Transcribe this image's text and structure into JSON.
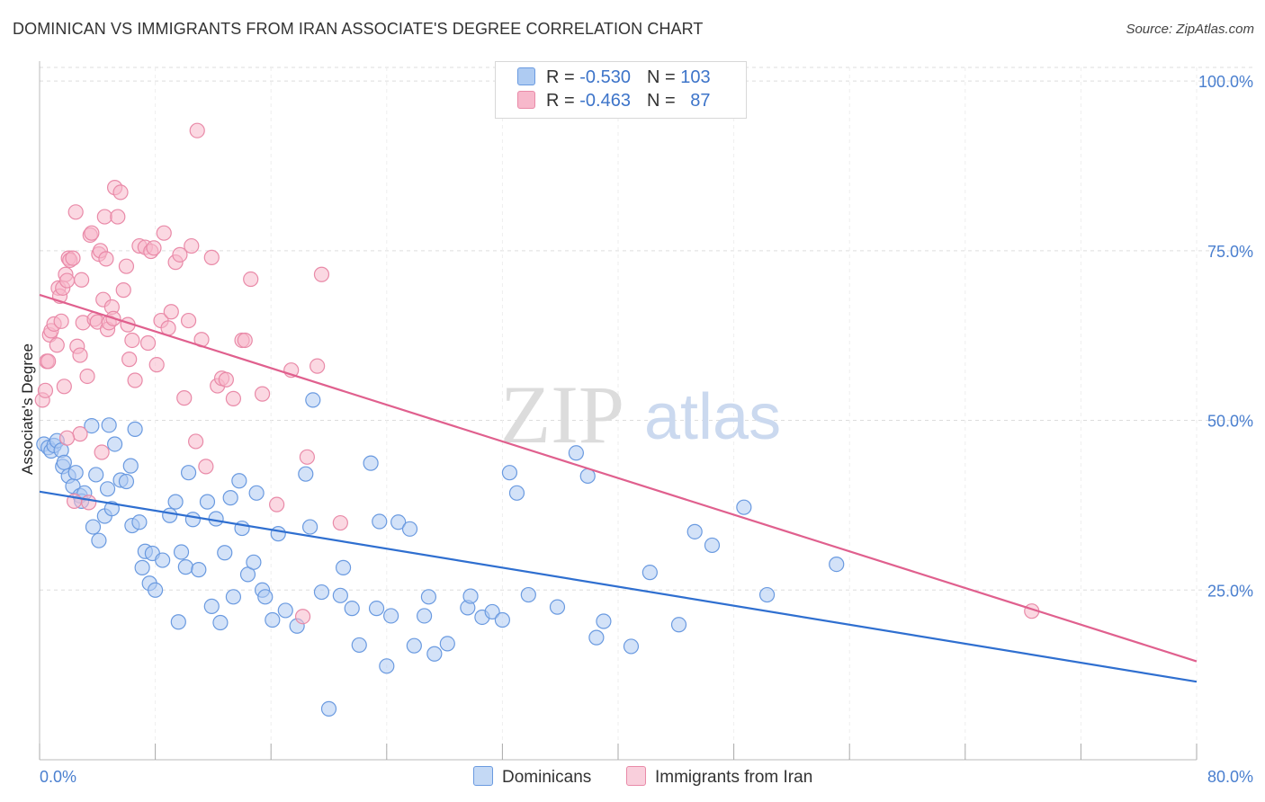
{
  "header": {
    "title": "DOMINICAN VS IMMIGRANTS FROM IRAN ASSOCIATE'S DEGREE CORRELATION CHART",
    "source": "Source: ZipAtlas.com"
  },
  "watermark": {
    "zip": "ZIP",
    "atlas": "atlas"
  },
  "legend": {
    "rows": [
      {
        "r_label": "R = ",
        "r_value": "-0.530",
        "n_label": "N = ",
        "n_value": "103"
      },
      {
        "r_label": "R = ",
        "r_value": "-0.463",
        "n_label": "N = ",
        "n_value": "87"
      }
    ]
  },
  "bottom_legend": {
    "series1": "Dominicans",
    "series2": "Immigrants from Iran"
  },
  "colors": {
    "blue_fill": "#aecbf2",
    "blue_stroke": "#6a9ae0",
    "blue_line": "#2f6fd0",
    "pink_fill": "#f7b8cb",
    "pink_stroke": "#e98aa8",
    "pink_line": "#e0608e",
    "grid": "#dddddd",
    "tick_label": "#4a7fcf"
  },
  "chart_data": {
    "type": "scatter",
    "title": "DOMINICAN VS IMMIGRANTS FROM IRAN ASSOCIATE'S DEGREE CORRELATION CHART",
    "xlabel": "",
    "ylabel": "Associate's Degree",
    "xlim": [
      0,
      80
    ],
    "ylim": [
      0,
      102
    ],
    "x_tick_labels": [
      "0.0%",
      "80.0%"
    ],
    "y_ticks": [
      25,
      50,
      75,
      100
    ],
    "y_tick_labels": [
      "25.0%",
      "50.0%",
      "75.0%",
      "100.0%"
    ],
    "grid": true,
    "legend_position": "top-center",
    "series": [
      {
        "name": "Dominicans",
        "color": "#aecbf2",
        "stats": {
          "R": -0.53,
          "N": 103
        },
        "trend": {
          "x": [
            0,
            80
          ],
          "y": [
            39.5,
            11.5
          ]
        },
        "points": [
          [
            0.3,
            46.5
          ],
          [
            0.6,
            46
          ],
          [
            0.8,
            45.5
          ],
          [
            1.0,
            46.3
          ],
          [
            1.2,
            47
          ],
          [
            1.5,
            45.6
          ],
          [
            1.6,
            43.2
          ],
          [
            1.7,
            43.8
          ],
          [
            2.0,
            41.8
          ],
          [
            2.3,
            40.3
          ],
          [
            2.5,
            42.3
          ],
          [
            2.8,
            38.9
          ],
          [
            2.9,
            38.1
          ],
          [
            3.1,
            39.3
          ],
          [
            3.6,
            49.2
          ],
          [
            3.7,
            34.3
          ],
          [
            3.9,
            42.0
          ],
          [
            4.1,
            32.3
          ],
          [
            4.5,
            35.9
          ],
          [
            4.7,
            39.9
          ],
          [
            4.8,
            49.3
          ],
          [
            5.0,
            37.0
          ],
          [
            5.2,
            46.5
          ],
          [
            5.6,
            41.2
          ],
          [
            6.0,
            41.0
          ],
          [
            6.3,
            43.3
          ],
          [
            6.6,
            48.7
          ],
          [
            6.4,
            34.5
          ],
          [
            6.9,
            35.0
          ],
          [
            7.1,
            28.3
          ],
          [
            7.3,
            30.7
          ],
          [
            7.6,
            26.0
          ],
          [
            8.0,
            25.0
          ],
          [
            7.8,
            30.4
          ],
          [
            8.5,
            29.4
          ],
          [
            9.0,
            36.0
          ],
          [
            9.4,
            38.0
          ],
          [
            9.6,
            20.3
          ],
          [
            9.8,
            30.6
          ],
          [
            10.1,
            28.4
          ],
          [
            10.3,
            42.3
          ],
          [
            10.6,
            35.4
          ],
          [
            11.0,
            28.0
          ],
          [
            11.6,
            38.0
          ],
          [
            11.9,
            22.6
          ],
          [
            12.2,
            35.5
          ],
          [
            12.5,
            20.2
          ],
          [
            12.8,
            30.5
          ],
          [
            13.2,
            38.6
          ],
          [
            13.4,
            24.0
          ],
          [
            13.8,
            41.1
          ],
          [
            14.0,
            34.1
          ],
          [
            14.4,
            27.3
          ],
          [
            14.8,
            29.1
          ],
          [
            15.0,
            39.3
          ],
          [
            15.4,
            25.0
          ],
          [
            15.6,
            24.0
          ],
          [
            16.1,
            20.6
          ],
          [
            16.5,
            33.3
          ],
          [
            17.0,
            22.0
          ],
          [
            17.8,
            19.7
          ],
          [
            18.7,
            34.3
          ],
          [
            18.9,
            53.0
          ],
          [
            18.4,
            42.1
          ],
          [
            19.5,
            24.7
          ],
          [
            20.0,
            7.5
          ],
          [
            20.8,
            24.2
          ],
          [
            21.0,
            28.3
          ],
          [
            21.6,
            22.3
          ],
          [
            22.1,
            16.9
          ],
          [
            22.9,
            43.7
          ],
          [
            23.3,
            22.3
          ],
          [
            23.5,
            35.1
          ],
          [
            24.3,
            21.2
          ],
          [
            24.8,
            35.0
          ],
          [
            25.6,
            34.0
          ],
          [
            25.9,
            16.8
          ],
          [
            26.6,
            21.2
          ],
          [
            26.9,
            24.0
          ],
          [
            27.3,
            15.6
          ],
          [
            28.2,
            17.1
          ],
          [
            29.6,
            22.4
          ],
          [
            29.8,
            24.1
          ],
          [
            30.6,
            21.0
          ],
          [
            31.3,
            21.8
          ],
          [
            32.0,
            20.6
          ],
          [
            32.5,
            42.3
          ],
          [
            33.0,
            39.3
          ],
          [
            33.8,
            24.3
          ],
          [
            35.8,
            22.5
          ],
          [
            37.1,
            45.2
          ],
          [
            37.9,
            41.8
          ],
          [
            38.5,
            18.0
          ],
          [
            39.0,
            20.4
          ],
          [
            40.9,
            16.7
          ],
          [
            45.3,
            33.6
          ],
          [
            42.2,
            27.6
          ],
          [
            44.2,
            19.9
          ],
          [
            46.5,
            31.6
          ],
          [
            48.7,
            37.2
          ],
          [
            50.3,
            24.3
          ],
          [
            55.1,
            28.8
          ],
          [
            24.0,
            13.8
          ]
        ]
      },
      {
        "name": "Immigrants from Iran",
        "color": "#f7b8cb",
        "stats": {
          "R": -0.463,
          "N": 87
        },
        "trend": {
          "x": [
            0,
            80
          ],
          "y": [
            68.5,
            14.5
          ]
        },
        "points": [
          [
            0.2,
            53.0
          ],
          [
            0.4,
            54.4
          ],
          [
            0.5,
            58.7
          ],
          [
            0.6,
            58.7
          ],
          [
            0.7,
            62.6
          ],
          [
            0.8,
            63.2
          ],
          [
            1.0,
            64.2
          ],
          [
            1.2,
            61.1
          ],
          [
            1.3,
            69.5
          ],
          [
            1.4,
            68.3
          ],
          [
            1.5,
            64.6
          ],
          [
            1.6,
            69.5
          ],
          [
            1.7,
            55.0
          ],
          [
            1.8,
            71.5
          ],
          [
            1.9,
            70.6
          ],
          [
            2.0,
            73.9
          ],
          [
            2.1,
            73.6
          ],
          [
            2.3,
            73.9
          ],
          [
            2.5,
            80.7
          ],
          [
            2.6,
            60.9
          ],
          [
            2.8,
            59.6
          ],
          [
            2.9,
            70.7
          ],
          [
            3.0,
            64.4
          ],
          [
            3.3,
            56.5
          ],
          [
            3.5,
            77.3
          ],
          [
            3.6,
            77.6
          ],
          [
            3.8,
            64.9
          ],
          [
            4.0,
            64.5
          ],
          [
            4.1,
            74.5
          ],
          [
            4.2,
            75.0
          ],
          [
            4.4,
            67.8
          ],
          [
            4.5,
            80.0
          ],
          [
            4.6,
            73.8
          ],
          [
            4.7,
            63.4
          ],
          [
            4.8,
            64.4
          ],
          [
            5.0,
            66.7
          ],
          [
            5.1,
            65.0
          ],
          [
            5.2,
            84.3
          ],
          [
            5.4,
            80.0
          ],
          [
            5.6,
            83.6
          ],
          [
            5.8,
            69.2
          ],
          [
            6.0,
            72.7
          ],
          [
            6.1,
            64.1
          ],
          [
            6.2,
            59.0
          ],
          [
            6.4,
            61.8
          ],
          [
            6.6,
            55.9
          ],
          [
            6.9,
            75.7
          ],
          [
            7.3,
            75.5
          ],
          [
            7.5,
            61.4
          ],
          [
            7.7,
            74.9
          ],
          [
            7.9,
            75.4
          ],
          [
            8.1,
            58.2
          ],
          [
            8.4,
            64.7
          ],
          [
            8.6,
            77.6
          ],
          [
            8.9,
            63.6
          ],
          [
            9.1,
            66.0
          ],
          [
            9.4,
            73.3
          ],
          [
            9.7,
            74.4
          ],
          [
            10.0,
            53.3
          ],
          [
            10.3,
            64.7
          ],
          [
            10.5,
            75.7
          ],
          [
            10.8,
            46.9
          ],
          [
            11.2,
            61.9
          ],
          [
            11.5,
            43.2
          ],
          [
            11.9,
            74.0
          ],
          [
            12.3,
            55.1
          ],
          [
            12.6,
            56.2
          ],
          [
            12.9,
            56.0
          ],
          [
            13.4,
            53.2
          ],
          [
            14.0,
            61.8
          ],
          [
            14.2,
            61.8
          ],
          [
            14.6,
            70.8
          ],
          [
            15.4,
            53.9
          ],
          [
            16.4,
            37.6
          ],
          [
            17.4,
            57.4
          ],
          [
            18.2,
            21.1
          ],
          [
            18.5,
            44.6
          ],
          [
            19.2,
            58.0
          ],
          [
            19.5,
            71.5
          ],
          [
            20.8,
            34.9
          ],
          [
            3.4,
            37.9
          ],
          [
            4.3,
            45.3
          ],
          [
            2.8,
            48.0
          ],
          [
            2.4,
            38.1
          ],
          [
            1.9,
            47.4
          ],
          [
            10.9,
            92.7
          ],
          [
            68.6,
            21.9
          ]
        ]
      }
    ]
  }
}
